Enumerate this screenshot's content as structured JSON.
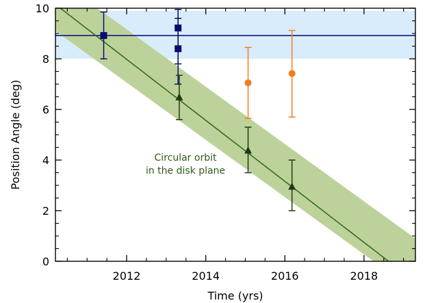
{
  "chart_data": {
    "type": "scatter",
    "title": "",
    "xlabel": "Time (yrs)",
    "ylabel": "Position Angle (deg)",
    "xlim": [
      2010.2,
      2019.3
    ],
    "ylim": [
      0,
      10
    ],
    "xticks": [
      2012,
      2014,
      2016,
      2018
    ],
    "yticks": [
      0,
      2,
      4,
      6,
      8,
      10
    ],
    "x_minor_step": 0.5,
    "y_minor_step": 0.5,
    "grid": false,
    "annotation": [
      "Circular orbit",
      "in the disk plane"
    ],
    "bands": [
      {
        "kind": "horizontal",
        "y_low": 8.0,
        "y_high": 9.9,
        "color": "#d8ecfb"
      },
      {
        "kind": "diagonal",
        "x": [
          2010.2,
          2019.3
        ],
        "y_low": [
          9.1,
          -1.2
        ],
        "y_high": [
          11.2,
          0.9
        ],
        "color": "#bdd29a"
      }
    ],
    "lines": [
      {
        "name": "horizontal-fit",
        "x": [
          2010.2,
          2019.3
        ],
        "y": [
          8.92,
          8.92
        ],
        "color": "#14147a"
      },
      {
        "name": "circular-orbit",
        "x": [
          2010.2,
          2018.62
        ],
        "y": [
          10.15,
          0
        ],
        "color": "#3a6b1e"
      }
    ],
    "series": [
      {
        "marker": "square",
        "color": "#0a0a6e",
        "points": [
          {
            "x": 2011.42,
            "y": 8.92,
            "err_low": 8.0,
            "err_high": 9.85
          },
          {
            "x": 2013.3,
            "y": 9.22,
            "err_low": 7.8,
            "err_high": 9.95
          },
          {
            "x": 2013.3,
            "y": 8.4,
            "err_low": 7.0,
            "err_high": 9.6
          }
        ]
      },
      {
        "marker": "triangle",
        "color": "#1f3a14",
        "points": [
          {
            "x": 2013.33,
            "y": 6.48,
            "err_low": 5.6,
            "err_high": 7.35
          },
          {
            "x": 2015.07,
            "y": 4.38,
            "err_low": 3.5,
            "err_high": 5.3
          },
          {
            "x": 2016.18,
            "y": 2.95,
            "err_low": 2.0,
            "err_high": 4.0
          }
        ]
      },
      {
        "marker": "circle",
        "color": "#f07d1e",
        "points": [
          {
            "x": 2015.07,
            "y": 7.05,
            "err_low": 5.65,
            "err_high": 8.45
          },
          {
            "x": 2016.18,
            "y": 7.42,
            "err_low": 5.7,
            "err_high": 9.12
          }
        ]
      }
    ]
  }
}
